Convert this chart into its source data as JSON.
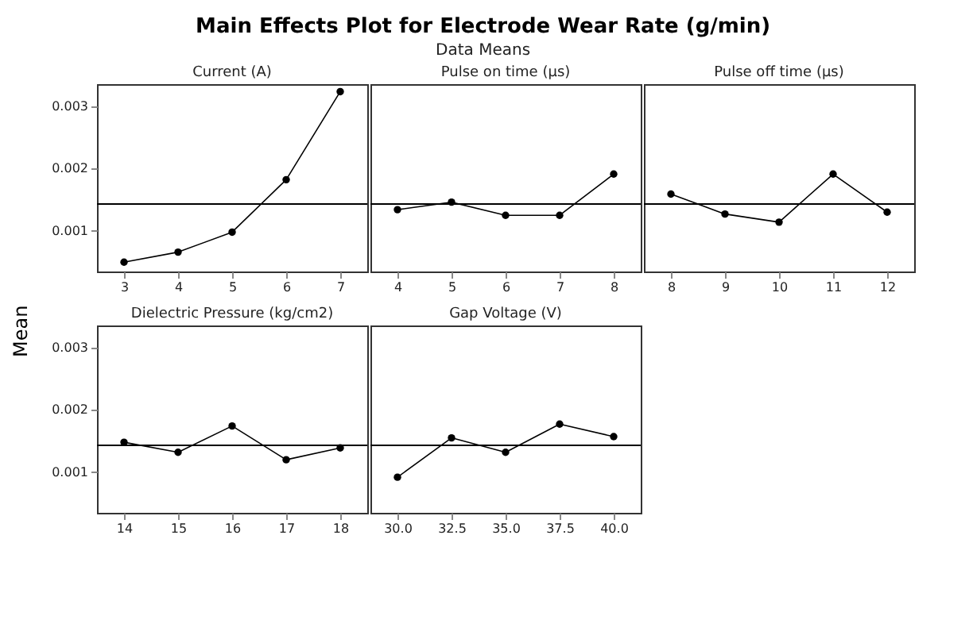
{
  "chart_data": [
    {
      "type": "line",
      "title": "Current (A)",
      "annotations": [
        "Main Effects Plot for Electrode Wear Rate (g/min)",
        "Data Means"
      ],
      "ylabel": "Mean",
      "x": [
        3,
        4,
        5,
        6,
        7
      ],
      "values": [
        0.0005,
        0.00066,
        0.00098,
        0.00182,
        0.00323
      ],
      "xlim": [
        2.5,
        7.5
      ],
      "xticks": [
        3,
        4,
        5,
        6,
        7
      ],
      "ylim": [
        0.00035,
        0.00335
      ],
      "yticks": [
        0.001,
        0.002,
        0.003
      ],
      "ref_lines": [
        {
          "axis": "y",
          "value": 0.00143,
          "color": "#000000"
        }
      ],
      "marker": "circle",
      "grid": false,
      "color": "#000000"
    },
    {
      "type": "line",
      "title": "Pulse on time (µs)",
      "x": [
        4,
        5,
        6,
        7,
        8
      ],
      "values": [
        0.00134,
        0.00146,
        0.00125,
        0.00125,
        0.00191
      ],
      "xlim": [
        3.5,
        8.5
      ],
      "xticks": [
        4,
        5,
        6,
        7,
        8
      ],
      "ylim": [
        0.00035,
        0.00335
      ],
      "yticks": [
        0.001,
        0.002,
        0.003
      ],
      "tick_labels": "x",
      "ref_lines": [
        {
          "axis": "y",
          "value": 0.00143,
          "color": "#000000"
        }
      ],
      "marker": "circle",
      "grid": false,
      "color": "#000000"
    },
    {
      "type": "line",
      "title": "Pulse off time (µs)",
      "x": [
        8,
        9,
        10,
        11,
        12
      ],
      "values": [
        0.00159,
        0.00127,
        0.00114,
        0.00191,
        0.0013
      ],
      "xlim": [
        7.5,
        12.5
      ],
      "xticks": [
        8,
        9,
        10,
        11,
        12
      ],
      "ylim": [
        0.00035,
        0.00335
      ],
      "yticks": [
        0.001,
        0.002,
        0.003
      ],
      "tick_labels": "x",
      "ref_lines": [
        {
          "axis": "y",
          "value": 0.00143,
          "color": "#000000"
        }
      ],
      "marker": "circle",
      "grid": false,
      "color": "#000000"
    },
    {
      "type": "line",
      "title": "Dielectric Pressure (kg/cm2)",
      "x": [
        14,
        15,
        16,
        17,
        18
      ],
      "values": [
        0.00148,
        0.00132,
        0.00174,
        0.0012,
        0.00139
      ],
      "xlim": [
        13.5,
        18.5
      ],
      "xticks": [
        14,
        15,
        16,
        17,
        18
      ],
      "ylim": [
        0.00035,
        0.00335
      ],
      "yticks": [
        0.001,
        0.002,
        0.003
      ],
      "ref_lines": [
        {
          "axis": "y",
          "value": 0.00143,
          "color": "#000000"
        }
      ],
      "marker": "circle",
      "grid": false,
      "color": "#000000"
    },
    {
      "type": "line",
      "title": "Gap Voltage (V)",
      "x": [
        30,
        32.5,
        35,
        37.5,
        40
      ],
      "values": [
        0.00092,
        0.00155,
        0.00132,
        0.00177,
        0.00157
      ],
      "xlim": [
        28.75,
        41.25
      ],
      "xticks": [
        {
          "value": 30,
          "label": "30.0"
        },
        {
          "value": 32.5,
          "label": "32.5"
        },
        {
          "value": 35,
          "label": "35.0"
        },
        {
          "value": 37.5,
          "label": "37.5"
        },
        {
          "value": 40,
          "label": "40.0"
        }
      ],
      "ylim": [
        0.00035,
        0.00335
      ],
      "yticks": [
        0.001,
        0.002,
        0.003
      ],
      "tick_labels": "x",
      "ref_lines": [
        {
          "axis": "y",
          "value": 0.00143,
          "color": "#000000"
        }
      ],
      "marker": "circle",
      "grid": false,
      "color": "#000000"
    }
  ]
}
